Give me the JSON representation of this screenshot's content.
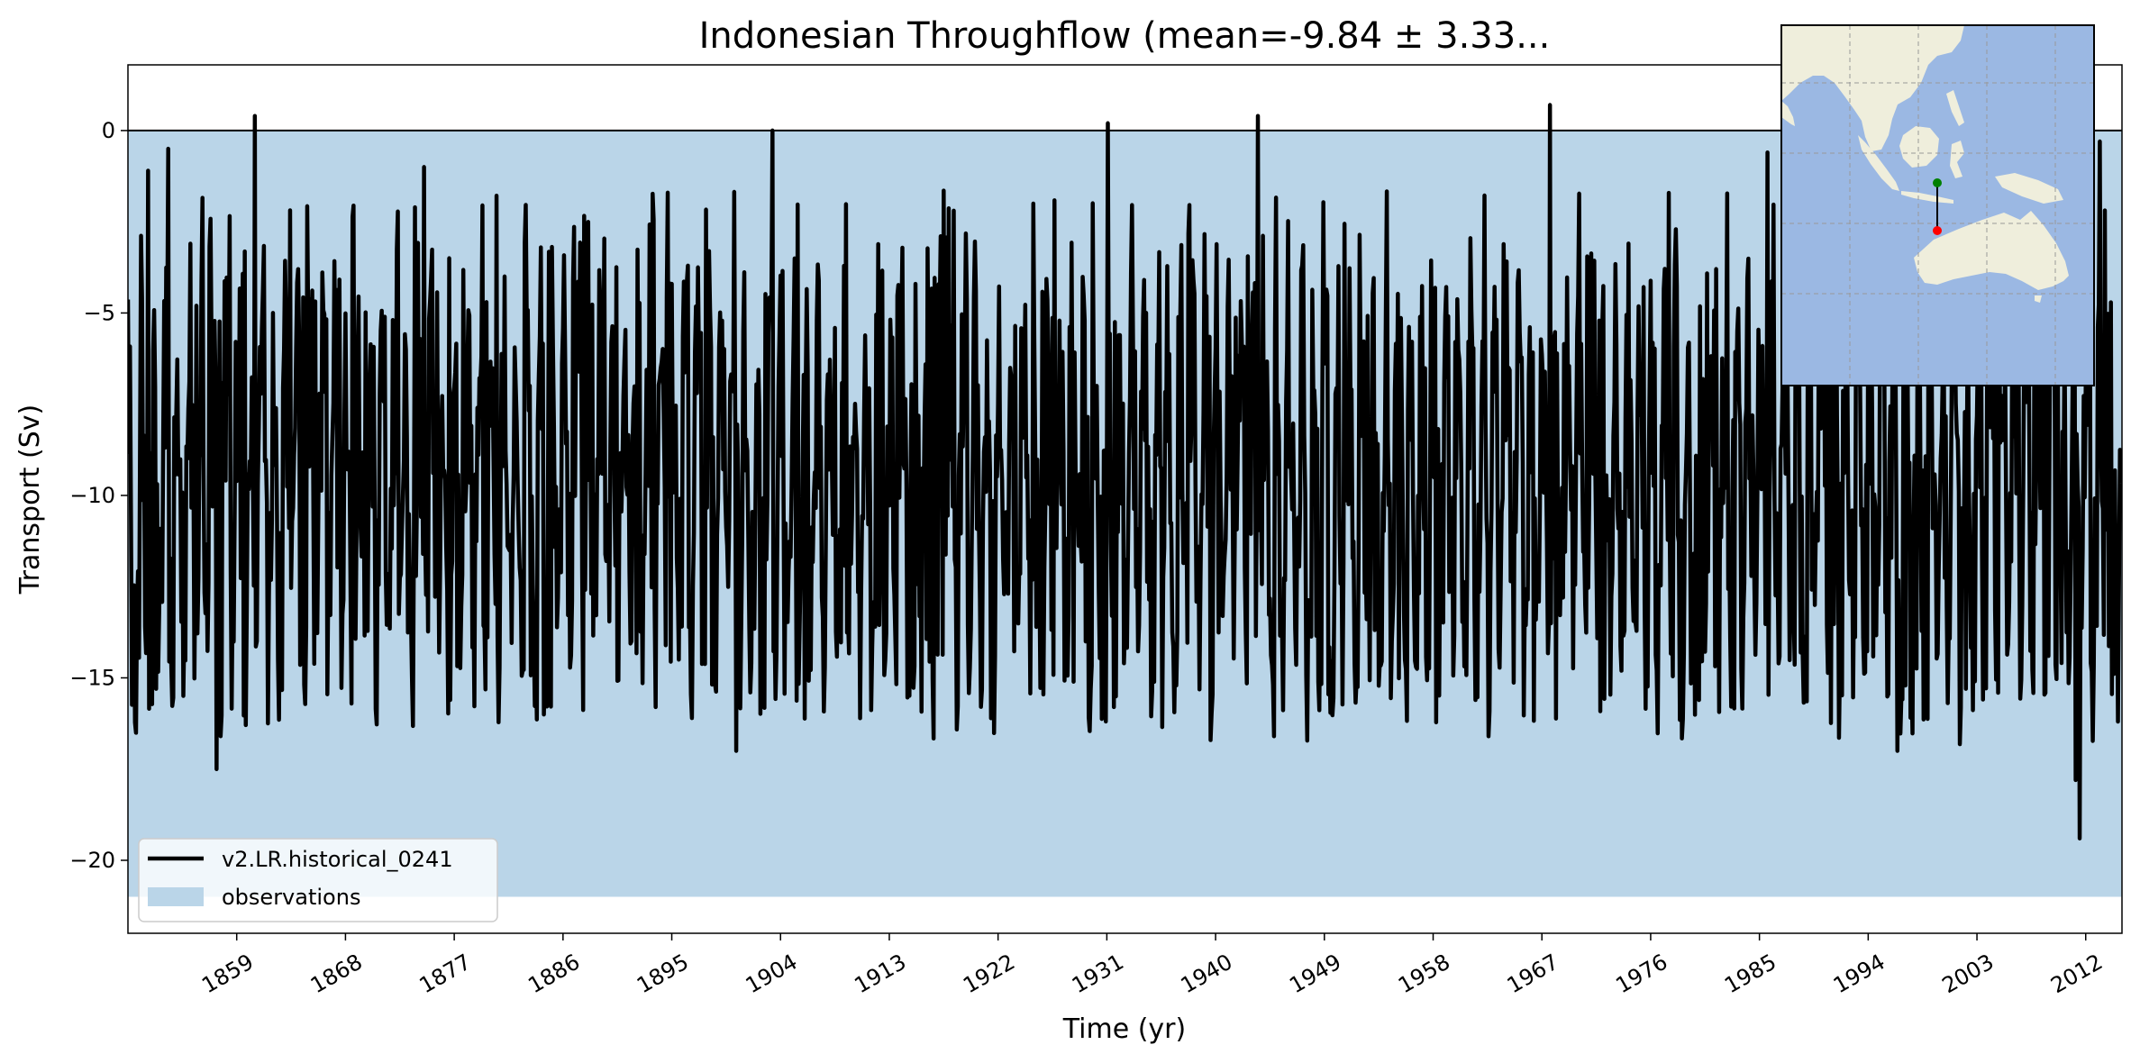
{
  "chart_data": {
    "type": "line",
    "title": "Indonesian Throughflow (mean=-9.84 ± 3.33...",
    "xlabel": "Time (yr)",
    "ylabel": "Transport (Sv)",
    "xlim": [
      1850,
      2015
    ],
    "ylim": [
      -22,
      1.8
    ],
    "x_ticks": [
      1859,
      1868,
      1877,
      1886,
      1895,
      1904,
      1913,
      1922,
      1931,
      1940,
      1949,
      1958,
      1967,
      1976,
      1985,
      1994,
      2003,
      2012
    ],
    "y_ticks": [
      0,
      -5,
      -10,
      -15,
      -20
    ],
    "y_tick_labels": [
      "0",
      "−5",
      "−10",
      "−15",
      "−20"
    ],
    "reference_line": 0,
    "series": [
      {
        "name": "v2.LR.historical_0241",
        "color": "#000000",
        "start_year": 1850,
        "end_year": 2015,
        "samples_per_year": 12,
        "mean": -9.84,
        "std": 3.33,
        "annotated_extremes": [
          {
            "x": 1857.3,
            "y": -17.5
          },
          {
            "x": 1852.3,
            "y": -15.3
          },
          {
            "x": 1851.7,
            "y": -1.1
          },
          {
            "x": 1853.3,
            "y": -0.5
          },
          {
            "x": 1860.5,
            "y": 0.4
          },
          {
            "x": 1874.5,
            "y": -1.0
          },
          {
            "x": 1903.3,
            "y": 0.0
          },
          {
            "x": 1900.3,
            "y": -17.0
          },
          {
            "x": 1931.1,
            "y": 0.2
          },
          {
            "x": 1943.5,
            "y": 0.4
          },
          {
            "x": 1944.8,
            "y": -16.6
          },
          {
            "x": 1967.7,
            "y": 0.7
          },
          {
            "x": 1962.6,
            "y": -16.6
          },
          {
            "x": 1985.7,
            "y": -0.6
          },
          {
            "x": 1996.4,
            "y": -17.0
          },
          {
            "x": 2011.2,
            "y": -17.8
          },
          {
            "x": 2011.5,
            "y": -19.4
          },
          {
            "x": 2013.2,
            "y": -0.3
          }
        ]
      }
    ],
    "observations": {
      "name": "observations",
      "y_range": [
        -21,
        0
      ],
      "color": "#bad5e8"
    },
    "legend": {
      "placement": "lower-left",
      "entries": [
        "v2.LR.historical_0241",
        "observations"
      ]
    },
    "inset_map": {
      "placement": "top-right",
      "ocean_color": "#9bb8e3",
      "land_color": "#efeedc",
      "section_start_marker_color": "#008000",
      "section_end_marker_color": "#ff0000"
    }
  }
}
